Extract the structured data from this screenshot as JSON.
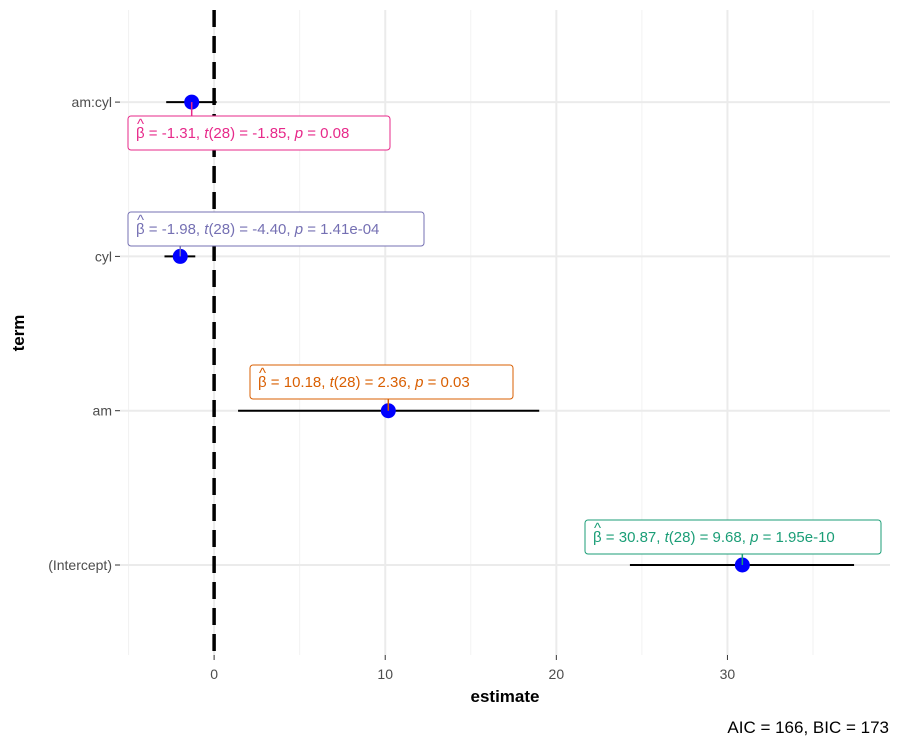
{
  "chart_data": {
    "type": "coefficient-plot",
    "xlabel": "estimate",
    "ylabel": "term",
    "caption": "AIC = 166, BIC = 173",
    "xlim": [
      -5.5,
      39.5
    ],
    "x_ticks": [
      0,
      10,
      20,
      30
    ],
    "x_tick_labels": [
      "0",
      "10",
      "20",
      "30"
    ],
    "reference_line": 0,
    "terms": [
      {
        "term": "(Intercept)",
        "estimate": 30.87,
        "conf_low": 24.3,
        "conf_high": 37.4,
        "color": "#1b9e77",
        "label": {
          "beta": "30.87",
          "df": "28",
          "t": "9.68",
          "p": "1.95e-10",
          "text_eq": "= 30.87, ",
          "text_t": "= 9.68, ",
          "text_p": "= 1.95e-10"
        }
      },
      {
        "term": "am",
        "estimate": 10.18,
        "conf_low": 1.4,
        "conf_high": 19.0,
        "color": "#d95f02",
        "label": {
          "beta": "10.18",
          "df": "28",
          "t": "2.36",
          "p": "0.03",
          "text_eq": "= 10.18, ",
          "text_t": "= 2.36, ",
          "text_p": "= 0.03"
        }
      },
      {
        "term": "cyl",
        "estimate": -1.98,
        "conf_low": -2.9,
        "conf_high": -1.1,
        "color": "#7570b3",
        "label": {
          "beta": "-1.98",
          "df": "28",
          "t": "-4.40",
          "p": "1.41e-04",
          "text_eq": "= -1.98, ",
          "text_t": "= -4.40, ",
          "text_p": "= 1.41e-04"
        }
      },
      {
        "term": "am:cyl",
        "estimate": -1.31,
        "conf_low": -2.8,
        "conf_high": 0.15,
        "color": "#e7298a",
        "label": {
          "beta": "-1.31",
          "df": "28",
          "t": "-1.85",
          "p": "0.08",
          "text_eq": "= -1.31, ",
          "text_t": "= -1.85, ",
          "text_p": "= 0.08"
        }
      }
    ],
    "point_color": "#0000ff",
    "symbols": {
      "beta": "β",
      "t": "t",
      "p": "p",
      "hat": "^"
    }
  }
}
